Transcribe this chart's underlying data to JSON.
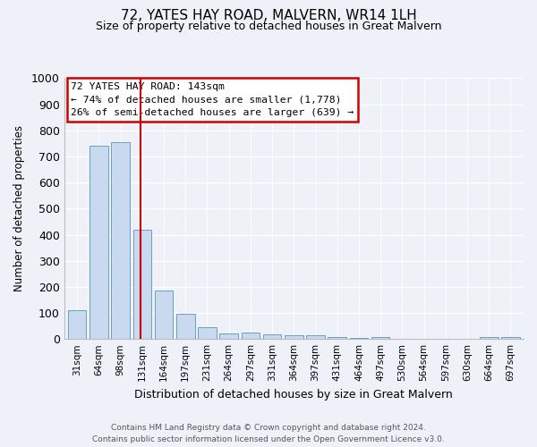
{
  "title": "72, YATES HAY ROAD, MALVERN, WR14 1LH",
  "subtitle": "Size of property relative to detached houses in Great Malvern",
  "xlabel": "Distribution of detached houses by size in Great Malvern",
  "ylabel": "Number of detached properties",
  "categories": [
    "31sqm",
    "64sqm",
    "98sqm",
    "131sqm",
    "164sqm",
    "197sqm",
    "231sqm",
    "264sqm",
    "297sqm",
    "331sqm",
    "364sqm",
    "397sqm",
    "431sqm",
    "464sqm",
    "497sqm",
    "530sqm",
    "564sqm",
    "597sqm",
    "630sqm",
    "664sqm",
    "697sqm"
  ],
  "values": [
    110,
    740,
    755,
    420,
    185,
    97,
    45,
    22,
    25,
    18,
    15,
    15,
    7,
    3,
    8,
    0,
    0,
    0,
    0,
    8,
    8
  ],
  "bar_color": "#c8d9f0",
  "bar_edge_color": "#6a9fc0",
  "vline_x": 2.93,
  "vline_color": "#cc0000",
  "ylim": [
    0,
    1000
  ],
  "yticks": [
    0,
    100,
    200,
    300,
    400,
    500,
    600,
    700,
    800,
    900,
    1000
  ],
  "annotation_text": "72 YATES HAY ROAD: 143sqm\n← 74% of detached houses are smaller (1,778)\n26% of semi-detached houses are larger (639) →",
  "annotation_box_color": "#ffffff",
  "annotation_box_edge": "#cc0000",
  "footer_line1": "Contains HM Land Registry data © Crown copyright and database right 2024.",
  "footer_line2": "Contains public sector information licensed under the Open Government Licence v3.0.",
  "bg_color": "#eef2f8",
  "plot_bg_color": "#eef2f8",
  "grid_color": "#d0d8e8"
}
